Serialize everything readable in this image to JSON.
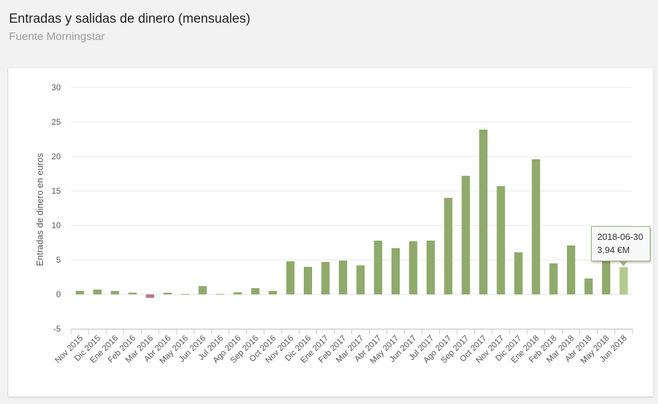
{
  "page": {
    "title": "Entradas y salidas de dinero (mensuales)",
    "subtitle": "Fuente Morningstar"
  },
  "colors": {
    "positive": "#8faa6b",
    "negative": "#b57889",
    "highlight": "#b3c98f",
    "grid": "#e6e6e6"
  },
  "chart_data": {
    "type": "bar",
    "ylabel": "Entradas de dinero en euros",
    "ylim": [
      -5,
      30
    ],
    "yticks": [
      -5,
      0,
      5,
      10,
      15,
      20,
      25,
      30
    ],
    "grid": true,
    "categories": [
      "Nov 2015",
      "Dic 2015",
      "Ene 2016",
      "Feb 2016",
      "Mar 2016",
      "Abr 2016",
      "May 2016",
      "Jun 2016",
      "Jul 2016",
      "Ago 2016",
      "Sep 2016",
      "Oct 2016",
      "Nov 2016",
      "Dic 2016",
      "Ene 2017",
      "Feb 2017",
      "Mar 2017",
      "Abr 2017",
      "May 2017",
      "Jun 2017",
      "Jul 2017",
      "Ago 2017",
      "Sep 2017",
      "Oct 2017",
      "Nov 2017",
      "Dic 2017",
      "Ene 2018",
      "Feb 2018",
      "Mar 2018",
      "Abr 2018",
      "May 2018",
      "Jun 2018"
    ],
    "values": [
      0.5,
      0.7,
      0.5,
      0.25,
      -0.5,
      0.25,
      0.05,
      1.2,
      0.05,
      0.3,
      0.9,
      0.5,
      4.8,
      4.0,
      4.7,
      4.9,
      4.2,
      7.8,
      6.7,
      7.7,
      7.8,
      14.0,
      17.2,
      23.9,
      15.7,
      6.1,
      19.6,
      4.5,
      7.1,
      2.3,
      4.8,
      3.94
    ],
    "tooltip": {
      "index": 31,
      "date": "2018-06-30",
      "value_text": "3,94 €M"
    }
  }
}
